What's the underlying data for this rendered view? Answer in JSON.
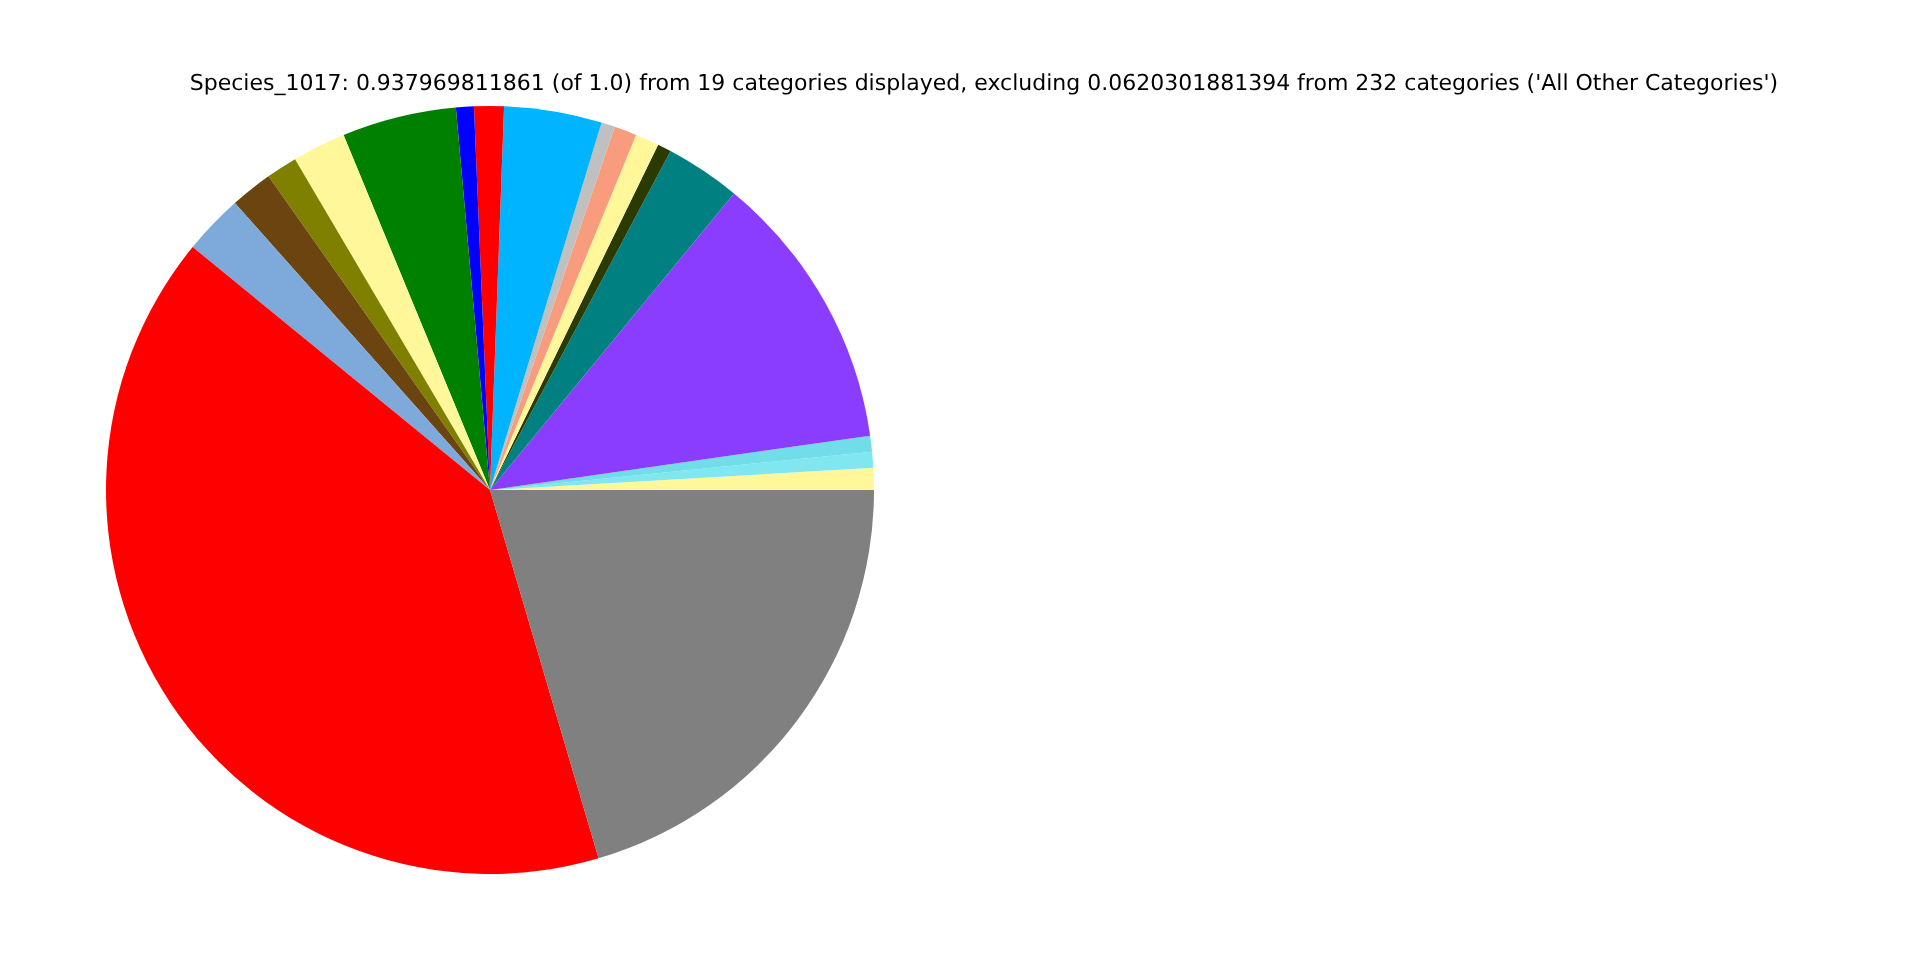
{
  "chart_data": {
    "type": "pie",
    "title": "Species_1017: 0.937969811861 (of 1.0) from 19 categories displayed, excluding 0.0620301881394 from 232 categories ('All Other Categories')",
    "categories": [
      null,
      null,
      null,
      null,
      null,
      null,
      null,
      null,
      null,
      null,
      null,
      null,
      null,
      null,
      null,
      null,
      null,
      null,
      null
    ],
    "values": [
      0.92,
      0.67,
      0.67,
      11.78,
      3.17,
      0.58,
      1.0,
      0.94,
      0.58,
      4.11,
      1.25,
      0.75,
      4.81,
      2.25,
      1.31,
      1.78,
      2.53,
      40.47,
      20.44
    ],
    "colors": [
      "#fff799",
      "#80e6f0",
      "#70dde8",
      "#8b3dff",
      "#008080",
      "#2a3a00",
      "#fff799",
      "#f99b7d",
      "#c0c0c0",
      "#00b4ff",
      "#ff0000",
      "#0000ff",
      "#008000",
      "#fff799",
      "#808000",
      "#6b4410",
      "#7ea9db",
      "#ff0000",
      "#808080"
    ]
  }
}
